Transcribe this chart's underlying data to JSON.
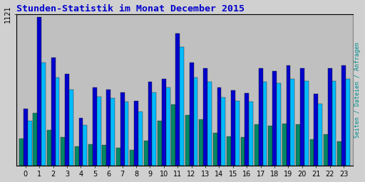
{
  "title": "Stunden-Statistik im Monat December 2015",
  "title_color": "#0000cc",
  "ylabel_right": "Seiten / Dateien / Anfragen",
  "ylabel_right_color": "#008888",
  "background_color": "#d0d0d0",
  "plot_bg_color": "#c0c0c0",
  "ytick_label": "1121",
  "categories": [
    0,
    1,
    2,
    3,
    4,
    5,
    6,
    7,
    8,
    9,
    10,
    11,
    12,
    13,
    14,
    15,
    16,
    17,
    18,
    19,
    20,
    21,
    22,
    23
  ],
  "seiten": [
    420,
    1100,
    800,
    680,
    350,
    580,
    560,
    540,
    480,
    620,
    640,
    980,
    760,
    720,
    580,
    555,
    535,
    720,
    700,
    740,
    720,
    530,
    720,
    740
  ],
  "dateien": [
    330,
    760,
    650,
    560,
    300,
    510,
    500,
    475,
    400,
    540,
    580,
    880,
    650,
    620,
    505,
    480,
    470,
    620,
    610,
    640,
    625,
    455,
    625,
    640
  ],
  "anfragen": [
    200,
    390,
    260,
    210,
    140,
    155,
    150,
    130,
    115,
    185,
    330,
    450,
    370,
    340,
    240,
    215,
    210,
    305,
    295,
    310,
    305,
    195,
    230,
    180
  ],
  "color_seiten": "#0000cc",
  "color_dateien": "#00bbff",
  "color_anfragen": "#008866",
  "ylim": [
    0,
    1121
  ],
  "bar_width": 0.3,
  "figsize": [
    5.12,
    2.56
  ],
  "dpi": 100
}
